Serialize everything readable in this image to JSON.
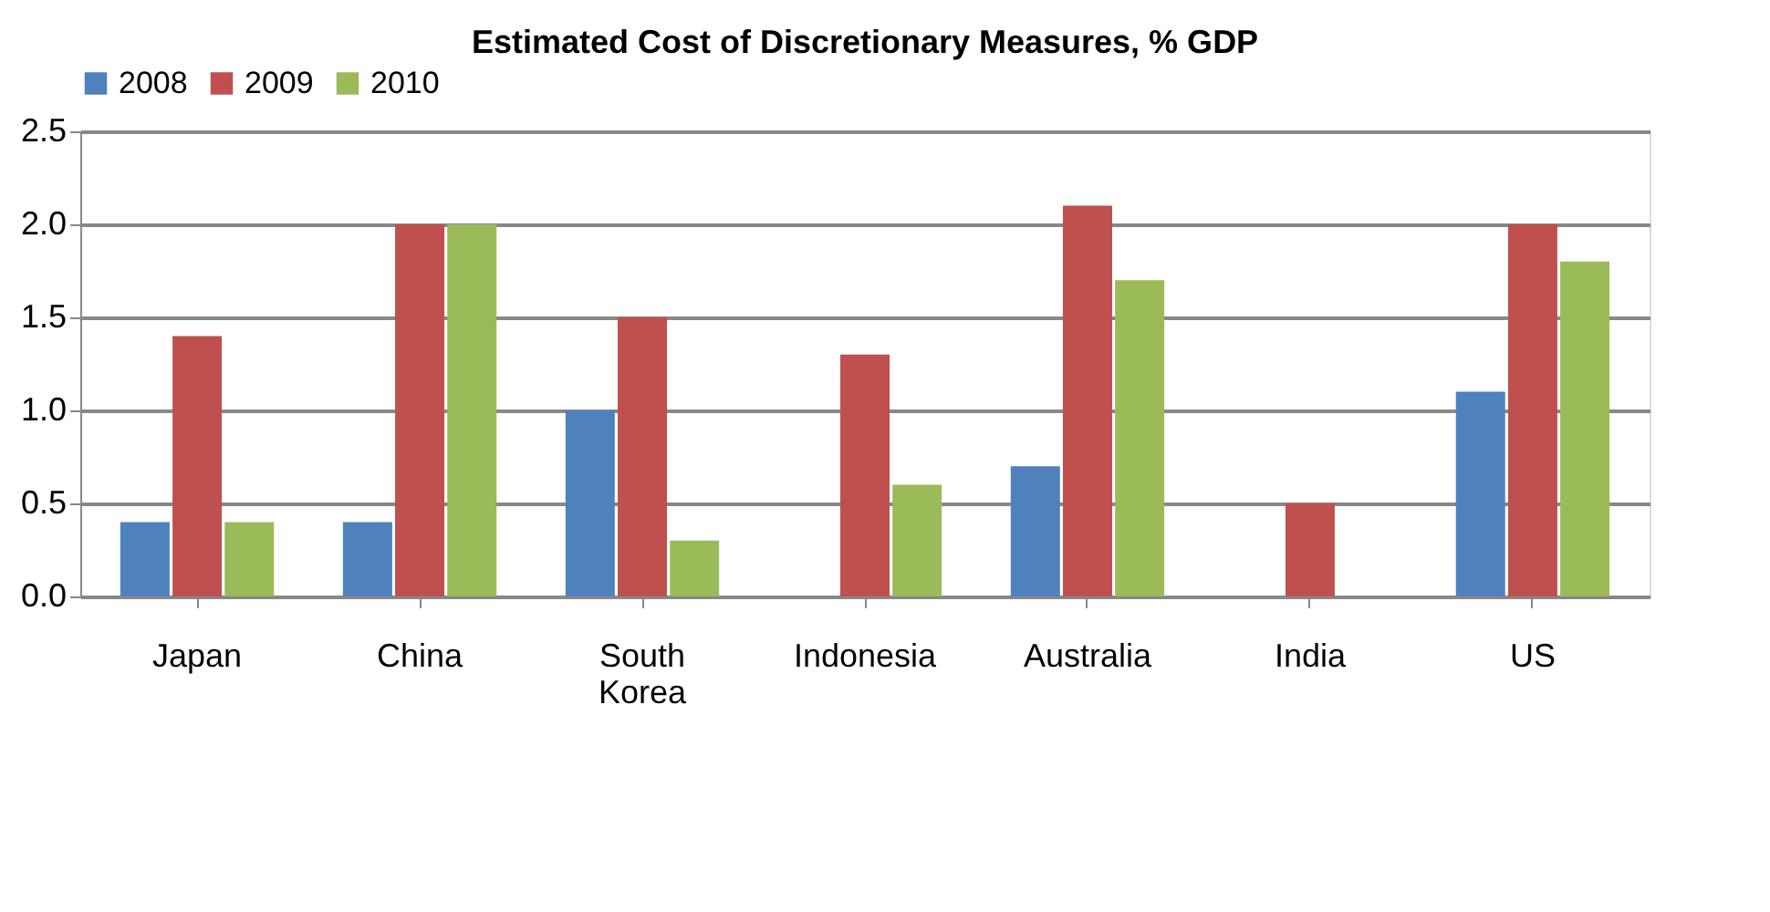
{
  "chart_data": {
    "type": "bar",
    "title": "Estimated Cost of Discretionary Measures, % GDP",
    "categories": [
      "Japan",
      "China",
      "South Korea",
      "Indonesia",
      "Australia",
      "India",
      "US"
    ],
    "series": [
      {
        "name": "2008",
        "color": "#4f81bd",
        "values": [
          0.4,
          0.4,
          1.0,
          null,
          0.7,
          null,
          1.1
        ]
      },
      {
        "name": "2009",
        "color": "#c0504d",
        "values": [
          1.4,
          2.0,
          1.5,
          1.3,
          2.1,
          0.5,
          2.0
        ]
      },
      {
        "name": "2010",
        "color": "#9bbb59",
        "values": [
          0.4,
          2.0,
          0.3,
          0.6,
          1.7,
          null,
          1.8
        ]
      }
    ],
    "ylim": [
      0,
      2.5
    ],
    "yticks": [
      {
        "value": 0,
        "label": "0.0"
      },
      {
        "value": 0.5,
        "label": "0.5"
      },
      {
        "value": 1,
        "label": "1.0"
      },
      {
        "value": 1.5,
        "label": "1.5"
      },
      {
        "value": 2,
        "label": "2.0"
      },
      {
        "value": 2.5,
        "label": "2.5"
      }
    ],
    "grid": "y",
    "legend": "top"
  }
}
